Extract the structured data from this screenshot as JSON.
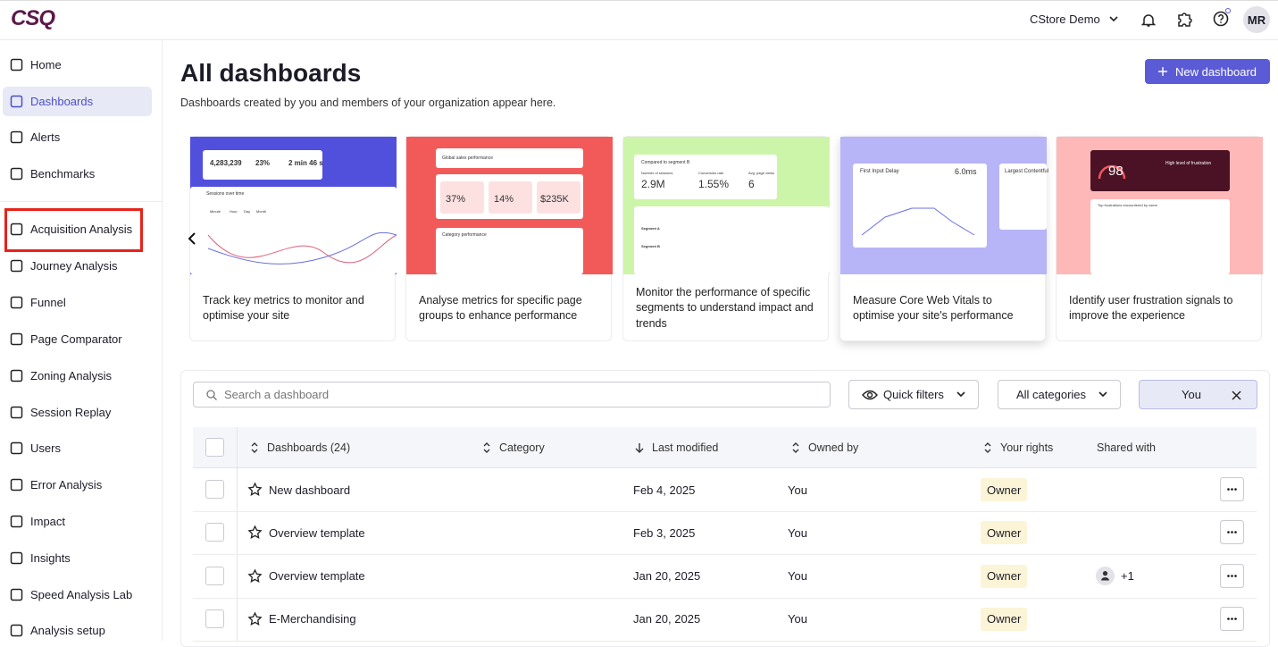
{
  "header": {
    "logo": "CSQ",
    "workspace": "CStore Demo",
    "avatar": "MR"
  },
  "sidebar": {
    "items": [
      "Home",
      "Dashboards",
      "Alerts",
      "Benchmarks",
      "Acquisition Analysis",
      "Journey Analysis",
      "Funnel",
      "Page Comparator",
      "Zoning Analysis",
      "Session Replay",
      "Users",
      "Error Analysis",
      "Impact",
      "Insights",
      "Speed Analysis Lab",
      "Analysis setup"
    ]
  },
  "page": {
    "title": "All dashboards",
    "subtitle": "Dashboards created by you and members of your organization appear here.",
    "new_button": "New dashboard"
  },
  "cards": [
    {
      "description": "Track key metrics to monitor and optimise your site",
      "thumb_texts": [
        "4,283,239",
        "23%",
        "2 min 46 s",
        "Sessions over time",
        "Minute",
        "Hour",
        "Day",
        "Month"
      ]
    },
    {
      "description": "Analyse metrics for specific page groups to enhance performance",
      "thumb_texts": [
        "Global sales performance",
        "37%",
        "14%",
        "$235K",
        "Category performance"
      ]
    },
    {
      "description": "Monitor the performance of specific segments to understand impact and trends",
      "thumb_texts": [
        "Compared to segment B",
        "Number of sessions",
        "Conversion rate",
        "Avg. page views",
        "2.9M",
        "1.55%",
        "6",
        "Segment A",
        "Segment B"
      ]
    },
    {
      "description": "Measure Core Web Vitals to optimise your site's performance",
      "thumb_texts": [
        "First Input Delay",
        "6.0ms",
        "Largest Contentful"
      ]
    },
    {
      "description": "Identify user frustration signals to improve the experience",
      "thumb_texts": [
        "98",
        "High level of frustration",
        "Top frustrations encountered by users"
      ]
    }
  ],
  "filters": {
    "search_placeholder": "Search a dashboard",
    "quick_filters": "Quick filters",
    "categories": "All categories",
    "owner_chip": "You"
  },
  "table": {
    "columns": [
      "Dashboards (24)",
      "Category",
      "Last modified",
      "Owned by",
      "Your rights",
      "Shared with"
    ],
    "rows": [
      {
        "name": "New dashboard",
        "modified": "Feb 4, 2025",
        "owner": "You",
        "rights": "Owner"
      },
      {
        "name": "Overview template",
        "modified": "Feb 3, 2025",
        "owner": "You",
        "rights": "Owner"
      },
      {
        "name": "Overview template",
        "modified": "Jan 20, 2025",
        "owner": "You",
        "rights": "Owner",
        "shared": "+1"
      },
      {
        "name": "E-Merchandising",
        "modified": "Jan 20, 2025",
        "owner": "You",
        "rights": "Owner"
      }
    ]
  }
}
